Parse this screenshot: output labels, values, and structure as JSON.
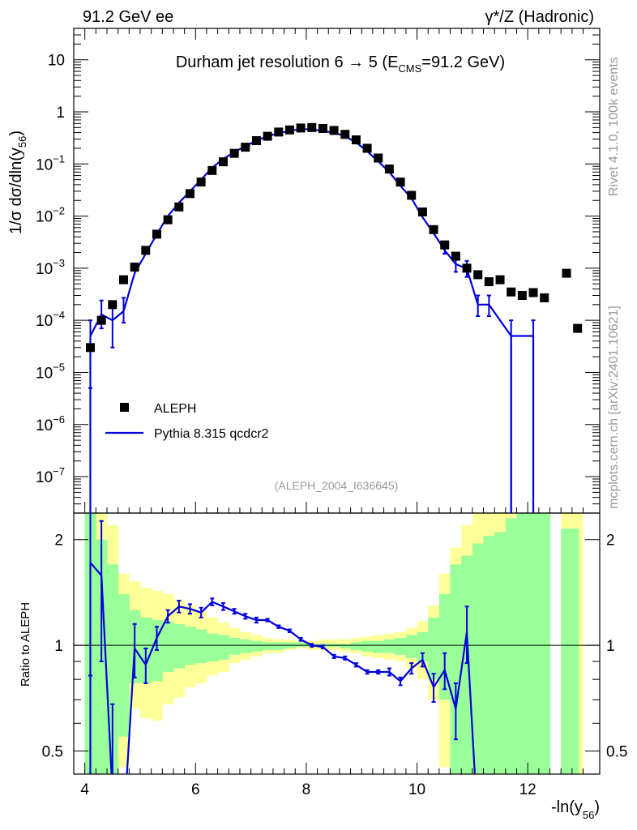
{
  "header": {
    "left": "91.2 GeV ee",
    "right": "γ*/Z (Hadronic)"
  },
  "side": {
    "rivet": "Rivet 4.1.0,  100k events",
    "mcplots": "mcplots.cern.ch [arXiv:2401.10621]"
  },
  "chart_data": [
    {
      "type": "scatter",
      "title": "Durham jet resolution 6 → 5 (E",
      "title_sub": "CMS",
      "title_tail": "=91.2 GeV)",
      "ylabel": "1/σ  dσ/dln(y",
      "ylabel_sub": "56",
      "ylabel_tail": ")",
      "yscale": "log",
      "xlim": [
        3.8,
        13.3
      ],
      "ylim": [
        2e-08,
        40
      ],
      "yticks": [
        {
          "v": 10,
          "label": "10"
        },
        {
          "v": 1,
          "label": "1"
        },
        {
          "v": 0.1,
          "label": "10",
          "exp": "−1"
        },
        {
          "v": 0.01,
          "label": "10",
          "exp": "−2"
        },
        {
          "v": 0.001,
          "label": "10",
          "exp": "−3"
        },
        {
          "v": 0.0001,
          "label": "10",
          "exp": "−4"
        },
        {
          "v": 1e-05,
          "label": "10",
          "exp": "−5"
        },
        {
          "v": 1e-06,
          "label": "10",
          "exp": "−6"
        },
        {
          "v": 1e-07,
          "label": "10",
          "exp": "−7"
        }
      ],
      "analysis_label": "(ALEPH_2004_I636645)",
      "legend": [
        {
          "name": "ALEPH",
          "style": "marker"
        },
        {
          "name": "Pythia 8.315 qcdcr2",
          "style": "line",
          "color": "#0000dd"
        }
      ],
      "series": [
        {
          "name": "ALEPH",
          "x": [
            4.1,
            4.3,
            4.5,
            4.7,
            4.9,
            5.1,
            5.3,
            5.5,
            5.7,
            5.9,
            6.1,
            6.3,
            6.5,
            6.7,
            6.9,
            7.1,
            7.3,
            7.5,
            7.7,
            7.9,
            8.1,
            8.3,
            8.5,
            8.7,
            8.9,
            9.1,
            9.3,
            9.5,
            9.7,
            9.9,
            10.1,
            10.3,
            10.5,
            10.7,
            10.9,
            11.1,
            11.3,
            11.5,
            11.7,
            11.9,
            12.1,
            12.3,
            12.7,
            12.9
          ],
          "y": [
            3e-05,
            0.0001,
            0.0002,
            0.0006,
            0.00105,
            0.0022,
            0.0045,
            0.0085,
            0.015,
            0.027,
            0.045,
            0.075,
            0.11,
            0.16,
            0.21,
            0.28,
            0.34,
            0.41,
            0.45,
            0.49,
            0.5,
            0.48,
            0.44,
            0.37,
            0.29,
            0.2,
            0.13,
            0.08,
            0.045,
            0.025,
            0.012,
            0.0055,
            0.0028,
            0.0017,
            0.001,
            0.00075,
            0.00055,
            0.0006,
            0.00035,
            0.0003,
            0.00034,
            0.00027,
            0.0008,
            7e-05
          ]
        },
        {
          "name": "Pythia 8.315 qcdcr2",
          "color": "#0000dd",
          "x": [
            4.1,
            4.3,
            4.5,
            4.7,
            4.9,
            5.1,
            5.3,
            5.5,
            5.7,
            5.9,
            6.1,
            6.3,
            6.5,
            6.7,
            6.9,
            7.1,
            7.3,
            7.5,
            7.7,
            7.9,
            8.1,
            8.3,
            8.5,
            8.7,
            8.9,
            9.1,
            9.3,
            9.5,
            9.7,
            9.9,
            10.1,
            10.3,
            10.5,
            10.7,
            10.9,
            11.1,
            11.3,
            11.5,
            11.7,
            11.9,
            12.1
          ],
          "y": [
            5e-05,
            0.00013,
            0.0001,
            0.00015,
            0.0008,
            0.0019,
            0.0045,
            0.01,
            0.018,
            0.03,
            0.05,
            0.085,
            0.125,
            0.17,
            0.22,
            0.28,
            0.34,
            0.39,
            0.43,
            0.47,
            0.46,
            0.43,
            0.4,
            0.34,
            0.26,
            0.175,
            0.112,
            0.07,
            0.038,
            0.022,
            0.0095,
            0.0047,
            0.0022,
            0.0012,
            0.00098,
            0.0002,
            0.0002,
            0.0001,
            5e-05,
            5e-05,
            5e-05
          ],
          "yerr_lo": [
            4.5e-05,
            6e-05,
            7e-05,
            6e-05,
            0,
            0,
            0,
            0,
            0,
            0,
            0,
            0,
            0,
            0,
            0,
            0,
            0,
            0,
            0,
            0,
            0,
            0,
            0,
            0,
            0,
            0,
            0,
            0,
            0,
            0,
            0,
            0,
            0.0003,
            0.00035,
            0.0003,
            8e-05,
            8e-05,
            0,
            5e-05,
            0,
            5e-05
          ],
          "yerr_hi": [
            5e-05,
            0.00011,
            0.0001,
            0.00012,
            0,
            0,
            0,
            0,
            0,
            0,
            0,
            0,
            0,
            0,
            0,
            0,
            0,
            0,
            0,
            0,
            0,
            0,
            0,
            0,
            0,
            0,
            0,
            0,
            0,
            0,
            0,
            0,
            0.0004,
            0.0004,
            0.0004,
            0.0001,
            0.0001,
            0,
            5e-05,
            0,
            5e-05
          ]
        }
      ]
    },
    {
      "type": "line",
      "ylabel": "Ratio to ALEPH",
      "xlabel": "-ln(y",
      "xlabel_sub": "56",
      "xlabel_tail": ")",
      "yscale": "log",
      "xlim": [
        3.8,
        13.3
      ],
      "ylim": [
        0.43,
        2.38
      ],
      "xticks": [
        4,
        6,
        8,
        10,
        12
      ],
      "yticks": [
        {
          "v": 2,
          "label": "2"
        },
        {
          "v": 1,
          "label": "1"
        },
        {
          "v": 0.5,
          "label": "0.5"
        }
      ],
      "bands": {
        "x_edges": [
          4.0,
          4.2,
          4.4,
          4.6,
          4.8,
          5.0,
          5.2,
          5.4,
          5.6,
          5.8,
          6.0,
          6.2,
          6.4,
          6.6,
          6.8,
          7.0,
          7.2,
          7.4,
          7.6,
          7.8,
          8.0,
          8.2,
          8.4,
          8.6,
          8.8,
          9.0,
          9.2,
          9.4,
          9.6,
          9.8,
          10.0,
          10.2,
          10.4,
          10.6,
          10.8,
          11.0,
          11.2,
          11.4,
          11.6,
          11.8,
          12.0,
          12.2,
          12.4
        ],
        "green_lo": [
          0.3,
          0.35,
          0.38,
          0.55,
          0.78,
          0.78,
          0.79,
          0.84,
          0.86,
          0.88,
          0.89,
          0.9,
          0.91,
          0.94,
          0.95,
          0.96,
          0.97,
          0.97,
          0.98,
          0.99,
          0.99,
          0.99,
          0.99,
          0.98,
          0.97,
          0.96,
          0.95,
          0.95,
          0.94,
          0.92,
          0.9,
          0.8,
          0.7,
          0.3,
          0.3,
          0.3,
          0.3,
          0.3,
          0.3,
          0.3,
          0.3,
          0.3,
          0.3
        ],
        "green_hi": [
          2.5,
          2.0,
          1.7,
          1.4,
          1.26,
          1.2,
          1.18,
          1.17,
          1.15,
          1.13,
          1.11,
          1.08,
          1.07,
          1.05,
          1.04,
          1.03,
          1.02,
          1.02,
          1.02,
          1.02,
          1.01,
          1.01,
          1.01,
          1.01,
          1.02,
          1.03,
          1.03,
          1.04,
          1.05,
          1.07,
          1.09,
          1.2,
          1.4,
          1.7,
          1.8,
          1.95,
          2.05,
          2.1,
          2.3,
          2.5,
          2.5,
          2.5,
          2.5
        ],
        "yellow_lo": [
          0.3,
          0.3,
          0.3,
          0.45,
          0.66,
          0.62,
          0.61,
          0.68,
          0.71,
          0.76,
          0.78,
          0.82,
          0.84,
          0.89,
          0.91,
          0.93,
          0.95,
          0.95,
          0.97,
          0.98,
          0.97,
          0.97,
          0.97,
          0.96,
          0.95,
          0.93,
          0.92,
          0.91,
          0.9,
          0.86,
          0.8,
          0.7,
          0.45,
          0.3,
          0.3,
          0.3,
          0.3,
          0.3,
          0.3,
          0.3,
          0.3,
          0.3,
          0.3
        ],
        "yellow_hi": [
          2.5,
          2.5,
          2.2,
          1.6,
          1.52,
          1.46,
          1.43,
          1.4,
          1.35,
          1.3,
          1.25,
          1.2,
          1.16,
          1.12,
          1.09,
          1.07,
          1.05,
          1.04,
          1.04,
          1.03,
          1.03,
          1.04,
          1.04,
          1.04,
          1.05,
          1.06,
          1.07,
          1.08,
          1.09,
          1.12,
          1.17,
          1.3,
          1.6,
          1.9,
          2.2,
          2.4,
          2.5,
          2.5,
          2.5,
          2.5,
          2.5,
          2.5,
          2.5
        ],
        "gap_after": 12.4,
        "resume_at": 12.6
      },
      "series": [
        {
          "name": "Pythia 8.315 qcdcr2 / ALEPH",
          "color": "#0000dd",
          "x": [
            4.1,
            4.3,
            4.5,
            4.7,
            4.9,
            5.1,
            5.3,
            5.5,
            5.7,
            5.9,
            6.1,
            6.3,
            6.5,
            6.7,
            6.9,
            7.1,
            7.3,
            7.5,
            7.7,
            7.9,
            8.1,
            8.3,
            8.5,
            8.7,
            8.9,
            9.1,
            9.3,
            9.5,
            9.7,
            9.9,
            10.1,
            10.3,
            10.5,
            10.7,
            10.9,
            11.1
          ],
          "y": [
            1.72,
            1.58,
            0.38,
            0.3,
            0.98,
            0.88,
            1.05,
            1.21,
            1.29,
            1.27,
            1.24,
            1.33,
            1.29,
            1.25,
            1.21,
            1.18,
            1.18,
            1.13,
            1.1,
            1.04,
            1.0,
            0.99,
            0.93,
            0.92,
            0.88,
            0.84,
            0.84,
            0.84,
            0.79,
            0.86,
            0.91,
            0.76,
            0.85,
            0.66,
            1.09,
            0.3
          ],
          "err": [
            0.9,
            0.68,
            0.3,
            0,
            0.17,
            0.1,
            0.08,
            0.05,
            0.05,
            0.04,
            0.04,
            0.03,
            0.03,
            0.02,
            0.02,
            0.02,
            0.01,
            0.01,
            0.01,
            0.01,
            0.01,
            0.01,
            0.01,
            0.01,
            0.01,
            0.01,
            0.01,
            0.02,
            0.02,
            0.03,
            0.04,
            0.07,
            0.1,
            0.12,
            0.2,
            0
          ]
        }
      ]
    }
  ]
}
